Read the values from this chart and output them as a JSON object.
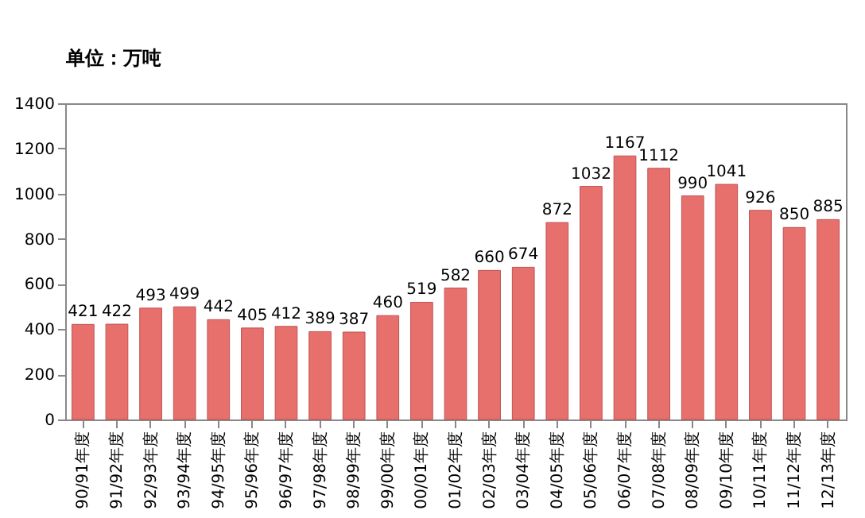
{
  "chart_data": {
    "type": "bar",
    "ylabel": "单位：万吨",
    "categories": [
      "90/91年度",
      "91/92年度",
      "92/93年度",
      "93/94年度",
      "94/95年度",
      "95/96年度",
      "96/97年度",
      "97/98年度",
      "98/99年度",
      "99/00年度",
      "00/01年度",
      "01/02年度",
      "02/03年度",
      "03/04年度",
      "04/05年度",
      "05/06年度",
      "06/07年度",
      "07/08年度",
      "08/09年度",
      "09/10年度",
      "10/11年度",
      "11/12年度",
      "12/13年度"
    ],
    "values": [
      421,
      422,
      493,
      499,
      442,
      405,
      412,
      389,
      387,
      460,
      519,
      582,
      660,
      674,
      872,
      1032,
      1167,
      1112,
      990,
      1041,
      926,
      850,
      885
    ],
    "color": "#e8706c",
    "ylim": [
      0,
      1400
    ],
    "yticks": [
      0,
      200,
      400,
      600,
      800,
      1000,
      1200,
      1400
    ],
    "grid": false,
    "data_labels": true
  }
}
